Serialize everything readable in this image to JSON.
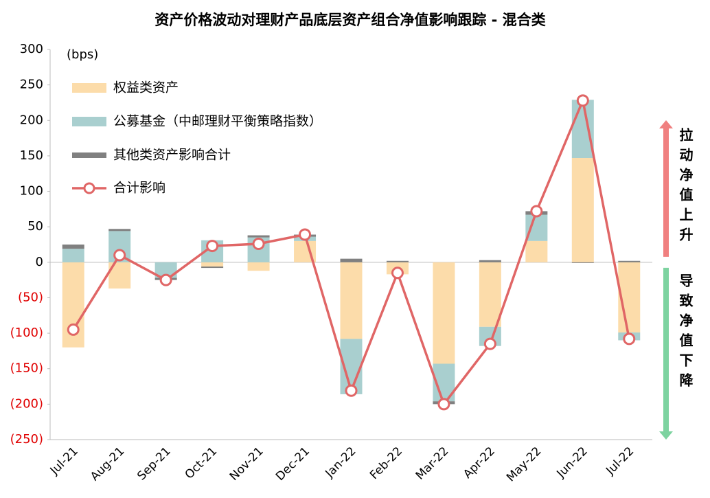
{
  "chart_data": {
    "type": "bar",
    "stacked": true,
    "title": "资产价格波动对理财产品底层资产组合净值影响跟踪 - 混合类",
    "y_unit_label": "(bps)",
    "categories": [
      "Jul-21",
      "Aug-21",
      "Sep-21",
      "Oct-21",
      "Nov-21",
      "Dec-21",
      "Jan-22",
      "Feb-22",
      "Mar-22",
      "Apr-22",
      "May-22",
      "Jun-22",
      "Jul-22"
    ],
    "series": [
      {
        "name": "权益类资产",
        "type": "bar",
        "color": "#fcdcaa",
        "values": [
          -120,
          -37,
          0,
          -6,
          -12,
          30,
          -108,
          -17,
          -143,
          -91,
          30,
          147,
          -99
        ]
      },
      {
        "name": "公募基金（中邮理财平衡策略指数）",
        "type": "bar",
        "color": "#a9cfcf",
        "values": [
          19,
          44,
          -22,
          31,
          35,
          6,
          -78,
          0,
          -53,
          -27,
          37,
          82,
          -11
        ]
      },
      {
        "name": "其他类资产影响合计",
        "type": "bar",
        "color": "#808080",
        "values": [
          6,
          3,
          -3,
          -2,
          3,
          3,
          5,
          2,
          -4,
          3,
          5,
          -1,
          2
        ]
      },
      {
        "name": "合计影响",
        "type": "line",
        "color": "#e06666",
        "values": [
          -95,
          10,
          -25,
          23,
          26,
          39,
          -181,
          -15,
          -200,
          -115,
          72,
          228,
          -108
        ]
      }
    ],
    "ylim": [
      -250,
      300
    ],
    "yticks": [
      {
        "value": -250,
        "label": "(250)"
      },
      {
        "value": -200,
        "label": "(200)"
      },
      {
        "value": -150,
        "label": "(150)"
      },
      {
        "value": -100,
        "label": "(100)"
      },
      {
        "value": -50,
        "label": "(50)"
      },
      0,
      50,
      100,
      150,
      200,
      250,
      300
    ],
    "negative_tick_color": "#e00000",
    "grid": false,
    "legend_position": "top-left",
    "annotations": [
      {
        "text": "拉动净值上升",
        "color": "#f08080"
      },
      {
        "text": "导致净值下降",
        "color": "#7dd3a0"
      }
    ]
  }
}
